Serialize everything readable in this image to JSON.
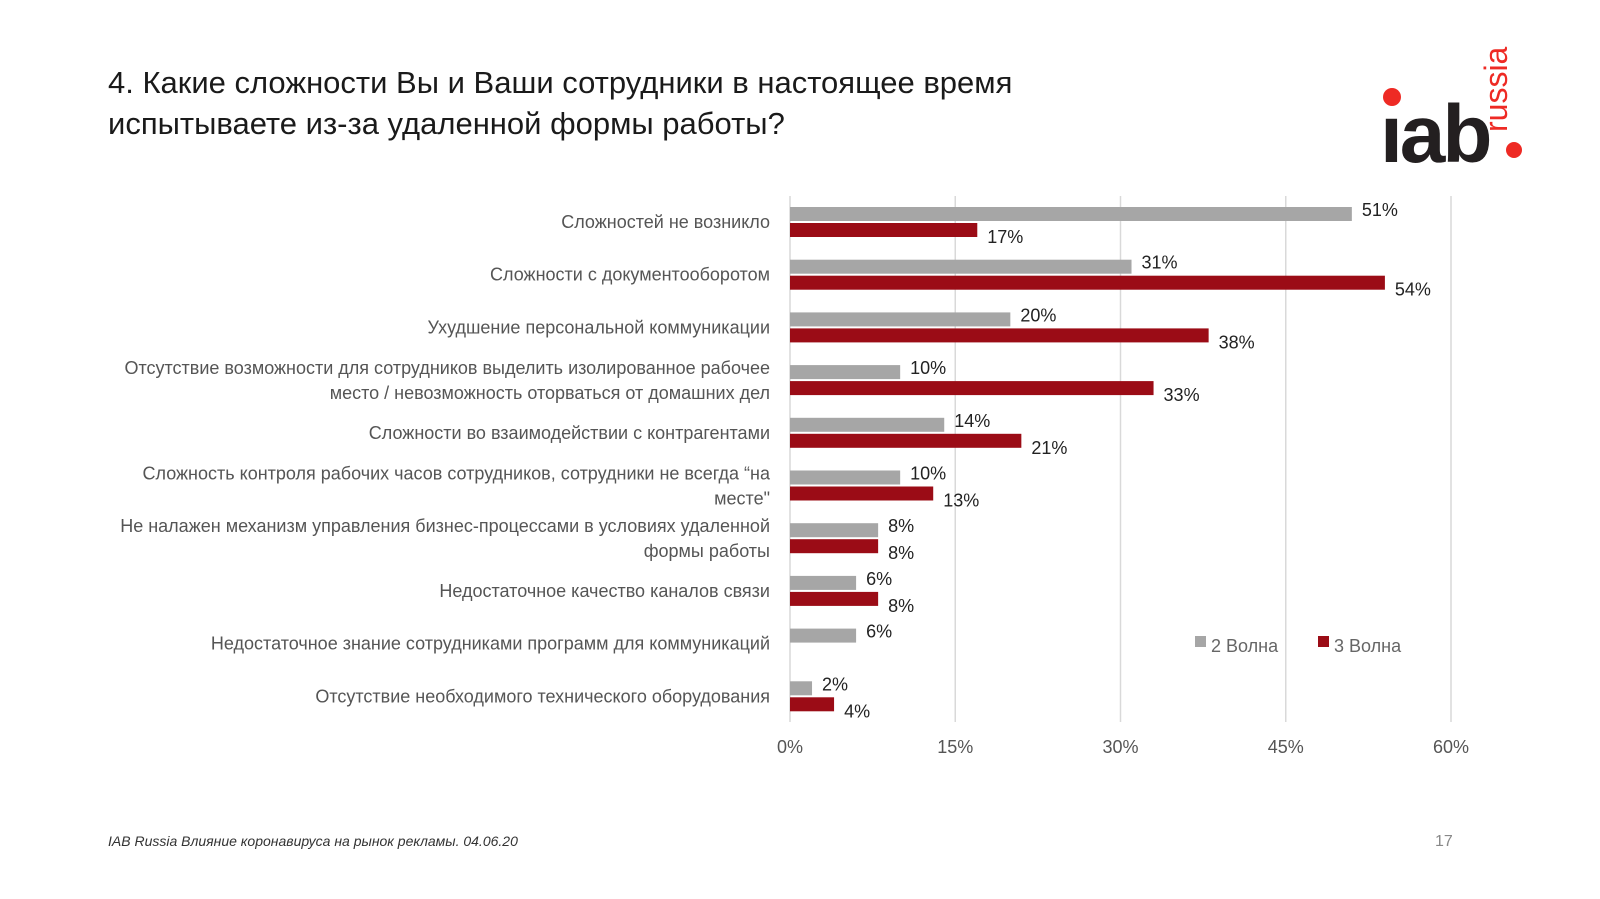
{
  "title_line1": "4. Какие сложности Вы и Ваши сотрудники в настоящее время",
  "title_line2": "испытываете из-за удаленной формы работы?",
  "logo": {
    "text": "iab",
    "suffix": "russia"
  },
  "footer": "IAB Russia Влияние коронавируса на рынок рекламы. 04.06.20",
  "page_number": "17",
  "colors": {
    "wave2": "#a6a6a6",
    "wave3": "#9b0c16"
  },
  "chart_data": {
    "type": "bar",
    "orientation": "horizontal",
    "categories": [
      [
        "Сложностей не возникло"
      ],
      [
        "Сложности с документооборотом"
      ],
      [
        "Ухудшение персональной коммуникации"
      ],
      [
        "Отсутствие возможности для сотрудников выделить изолированное рабочее",
        "место / невозможность оторваться от домашних дел"
      ],
      [
        "Сложности во взаимодействии с контрагентами"
      ],
      [
        "Сложность контроля рабочих часов сотрудников, сотрудники не всегда “на",
        "месте\""
      ],
      [
        "Не налажен механизм управления бизнес-процессами в условиях удаленной",
        "формы работы"
      ],
      [
        "Недостаточное качество каналов связи"
      ],
      [
        "Недостаточное знание сотрудниками программ для коммуникаций"
      ],
      [
        "Отсутствие необходимого технического оборудования"
      ]
    ],
    "series": [
      {
        "name": "2 Волна",
        "values": [
          51,
          31,
          20,
          10,
          14,
          10,
          8,
          6,
          6,
          2
        ]
      },
      {
        "name": "3 Волна",
        "values": [
          17,
          54,
          38,
          33,
          21,
          13,
          8,
          8,
          null,
          4
        ]
      }
    ],
    "xlim": [
      0,
      60
    ],
    "xticks": [
      0,
      15,
      30,
      45,
      60
    ],
    "xtick_labels": [
      "0%",
      "15%",
      "30%",
      "45%",
      "60%"
    ],
    "value_suffix": "%",
    "grid": true,
    "legend_position": "bottom-right"
  }
}
